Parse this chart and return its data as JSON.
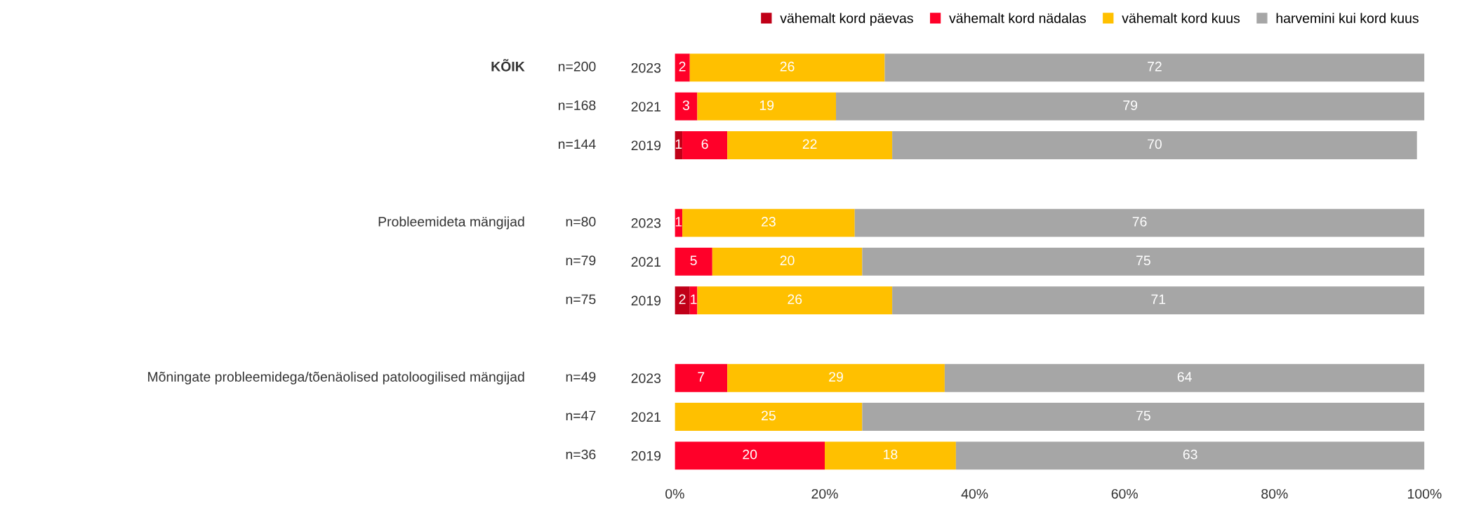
{
  "chart_data": {
    "type": "bar",
    "orientation": "horizontal",
    "stacked": true,
    "data_labels": true,
    "grid": false,
    "legend": "top right",
    "categories": [
      "2023",
      "2021",
      "2019",
      null,
      "2023",
      "2021",
      "2019",
      null,
      "2023",
      "2021",
      "2019"
    ],
    "series": [
      {
        "name": "vähemalt kord päevas",
        "color": "#c00018",
        "values": [
          null,
          null,
          1,
          null,
          null,
          null,
          2,
          null,
          null,
          null,
          null
        ]
      },
      {
        "name": "vähemalt kord nädalas",
        "color": "#ff0029",
        "values": [
          2,
          3,
          6,
          null,
          1,
          5,
          1,
          null,
          7,
          null,
          20
        ]
      },
      {
        "name": "vähemalt kord kuus",
        "color": "#ffc000",
        "values": [
          26,
          18.5,
          22,
          null,
          23,
          20,
          26,
          null,
          29,
          25,
          17.5
        ],
        "value_labels": [
          "26",
          "19",
          "22",
          null,
          "23",
          "20",
          "26",
          null,
          "29",
          "25",
          "18"
        ]
      },
      {
        "name": "harvemini kui kord kuus",
        "color": "#a6a6a6",
        "values": [
          72,
          78.5,
          70,
          null,
          76,
          75,
          71,
          null,
          64,
          75,
          62.5
        ],
        "value_labels": [
          "72",
          "79",
          "70",
          null,
          "76",
          "75",
          "71",
          null,
          "64",
          "75",
          "63"
        ]
      }
    ],
    "xlim": [
      0,
      100
    ],
    "xticks": [
      {
        "value": 0,
        "label": "0%"
      },
      {
        "value": 20,
        "label": "20%"
      },
      {
        "value": 40,
        "label": "40%"
      },
      {
        "value": 60,
        "label": "60%"
      },
      {
        "value": 80,
        "label": "80%"
      },
      {
        "value": 100,
        "label": "100%"
      }
    ],
    "annotations": [
      "KÕIK",
      "n=200",
      "n=168",
      "n=144",
      "Probleemideta mängijad",
      "n=80",
      "n=79",
      "n=75",
      "Mõningate probleemidega/tõenäolised patoloogilised mängijad",
      "n=49",
      "n=47",
      "n=36"
    ]
  }
}
